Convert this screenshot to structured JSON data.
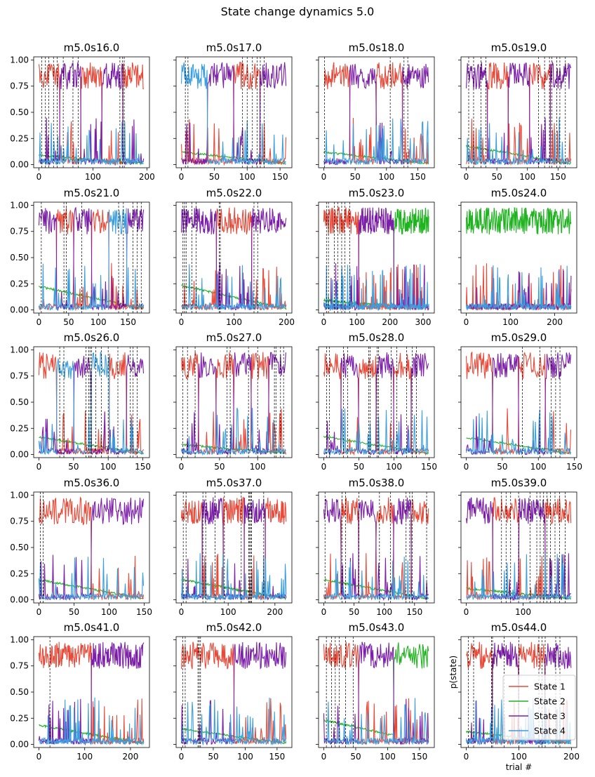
{
  "suptitle": "State change dynamics 5.0",
  "colors": {
    "State 1": "#e84a3a",
    "State 2": "#1fb31f",
    "State 3": "#7b1ea8",
    "State 4": "#3b9ede",
    "change_line": "#000000"
  },
  "legend": {
    "location": "lower-right of last panel",
    "entries": [
      "State 1",
      "State 2",
      "State 3",
      "State 4"
    ]
  },
  "shared_axes": {
    "ylabel": "p(state)",
    "xlabel": "trial #",
    "ylim": [
      0,
      1.0
    ],
    "yticks": [
      "0.00",
      "0.25",
      "0.50",
      "0.75",
      "1.00"
    ]
  },
  "chart_data": [
    {
      "type": "line",
      "title": "m5.0s16.0",
      "n_trials": 195,
      "xticks": [
        0,
        100,
        200
      ],
      "dominant": [
        1,
        3,
        1,
        3,
        1
      ],
      "changes": [
        5,
        12,
        18,
        27,
        34,
        45,
        63,
        73,
        150,
        155,
        158
      ]
    },
    {
      "type": "line",
      "title": "m5.0s17.0",
      "n_trials": 160,
      "xticks": [
        0,
        50,
        100,
        150
      ],
      "dominant": [
        4,
        3,
        1,
        3
      ],
      "changes": [
        6,
        10,
        93,
        100,
        108,
        115,
        120,
        126
      ]
    },
    {
      "type": "line",
      "title": "m5.0s18.0",
      "n_trials": 168,
      "xticks": [
        0,
        50,
        100,
        150
      ],
      "dominant": [
        1,
        3,
        1,
        3
      ],
      "changes": [
        1,
        106,
        128,
        134
      ]
    },
    {
      "type": "line",
      "title": "m5.0s19.0",
      "n_trials": 172,
      "xticks": [
        0,
        50,
        100,
        150
      ],
      "dominant": [
        3,
        1,
        3,
        1,
        3
      ],
      "changes": [
        4,
        12,
        24,
        32,
        118,
        128,
        136,
        140,
        148,
        153,
        162
      ]
    },
    {
      "type": "line",
      "title": "m5.0s21.0",
      "n_trials": 177,
      "xticks": [
        0,
        50,
        100,
        150
      ],
      "dominant": [
        3,
        1,
        3,
        1,
        4,
        3
      ],
      "changes": [
        4,
        42,
        46,
        72,
        134,
        142,
        158,
        165,
        172
      ]
    },
    {
      "type": "line",
      "title": "m5.0s22.0",
      "n_trials": 200,
      "xticks": [
        0,
        100,
        200
      ],
      "dominant": [
        3,
        1,
        3
      ],
      "changes": [
        3,
        6,
        9,
        20,
        28,
        72,
        74,
        138,
        145
      ]
    },
    {
      "type": "line",
      "title": "m5.0s23.0",
      "n_trials": 318,
      "xticks": [
        0,
        100,
        200,
        300
      ],
      "dominant": [
        1,
        3,
        2
      ],
      "changes": [
        8,
        14,
        32,
        42,
        54,
        64,
        78
      ]
    },
    {
      "type": "line",
      "title": "m5.0s24.0",
      "n_trials": 238,
      "xticks": [
        0,
        100,
        200
      ],
      "dominant": [
        2
      ],
      "changes": []
    },
    {
      "type": "line",
      "title": "m5.0s26.0",
      "n_trials": 152,
      "xticks": [
        0,
        50,
        100,
        150
      ],
      "dominant": [
        1,
        4,
        3,
        4,
        1,
        3
      ],
      "changes": [
        30,
        36,
        68,
        72,
        74,
        76,
        82,
        90,
        100,
        114,
        132,
        136,
        142
      ]
    },
    {
      "type": "line",
      "title": "m5.0s27.0",
      "n_trials": 138,
      "xticks": [
        0,
        50,
        100
      ],
      "dominant": [
        1,
        3,
        1,
        3,
        1,
        3
      ],
      "changes": [
        2,
        8,
        18,
        60,
        64,
        88,
        100,
        122,
        124,
        130,
        134
      ]
    },
    {
      "type": "line",
      "title": "m5.0s28.0",
      "n_trials": 150,
      "xticks": [
        0,
        50,
        100,
        150
      ],
      "dominant": [
        1,
        3,
        1,
        3,
        1,
        3
      ],
      "changes": [
        4,
        8,
        28,
        34,
        64,
        66,
        76,
        78,
        96,
        104,
        118,
        126,
        132
      ]
    },
    {
      "type": "line",
      "title": "m5.0s29.0",
      "n_trials": 146,
      "xticks": [
        0,
        50,
        100,
        150
      ],
      "dominant": [
        1,
        3,
        1,
        3
      ],
      "changes": [
        78,
        102,
        118,
        124,
        130
      ]
    },
    {
      "type": "line",
      "title": "m5.0s36.0",
      "n_trials": 150,
      "xticks": [
        0,
        50,
        100,
        150
      ],
      "dominant": [
        1,
        3
      ],
      "changes": [
        2,
        6
      ]
    },
    {
      "type": "line",
      "title": "m5.0s37.0",
      "n_trials": 225,
      "xticks": [
        0,
        100,
        200
      ],
      "dominant": [
        1,
        3,
        1,
        3,
        1
      ],
      "changes": [
        4,
        10,
        46,
        52,
        72,
        92,
        128,
        144,
        146,
        148,
        150,
        176
      ]
    },
    {
      "type": "line",
      "title": "m5.0s38.0",
      "n_trials": 174,
      "xticks": [
        0,
        50,
        100,
        150
      ],
      "dominant": [
        3,
        1,
        3,
        1,
        3,
        1
      ],
      "changes": [
        2,
        30,
        36,
        58,
        92,
        110,
        136,
        142,
        146,
        170
      ]
    },
    {
      "type": "line",
      "title": "m5.0s39.0",
      "n_trials": 185,
      "xticks": [
        0,
        100
      ],
      "dominant": [
        3,
        1,
        3,
        1
      ],
      "changes": [
        62,
        70,
        78,
        92,
        112,
        124,
        130,
        136,
        142,
        148,
        156,
        164,
        174
      ]
    },
    {
      "type": "line",
      "title": "m5.0s41.0",
      "n_trials": 230,
      "xticks": [
        0,
        100,
        200
      ],
      "dominant": [
        1,
        3
      ],
      "changes": [
        24
      ]
    },
    {
      "type": "line",
      "title": "m5.0s42.0",
      "n_trials": 165,
      "xticks": [
        0,
        50,
        100,
        150
      ],
      "dominant": [
        1,
        3
      ],
      "changes": [
        2,
        6,
        26,
        28,
        30
      ]
    },
    {
      "type": "line",
      "title": "m5.0s43.0",
      "n_trials": 165,
      "xticks": [
        0,
        50,
        100,
        150
      ],
      "dominant": [
        1,
        3,
        2
      ],
      "changes": [
        4,
        12,
        18,
        24,
        34,
        46
      ]
    },
    {
      "type": "line",
      "title": "m5.0s44.0",
      "n_trials": 200,
      "xticks": [
        0,
        100,
        200
      ],
      "dominant": [
        1,
        3,
        1,
        3
      ],
      "changes": [
        4,
        14,
        48,
        50,
        72,
        100,
        138,
        144,
        150,
        170,
        178
      ]
    }
  ]
}
